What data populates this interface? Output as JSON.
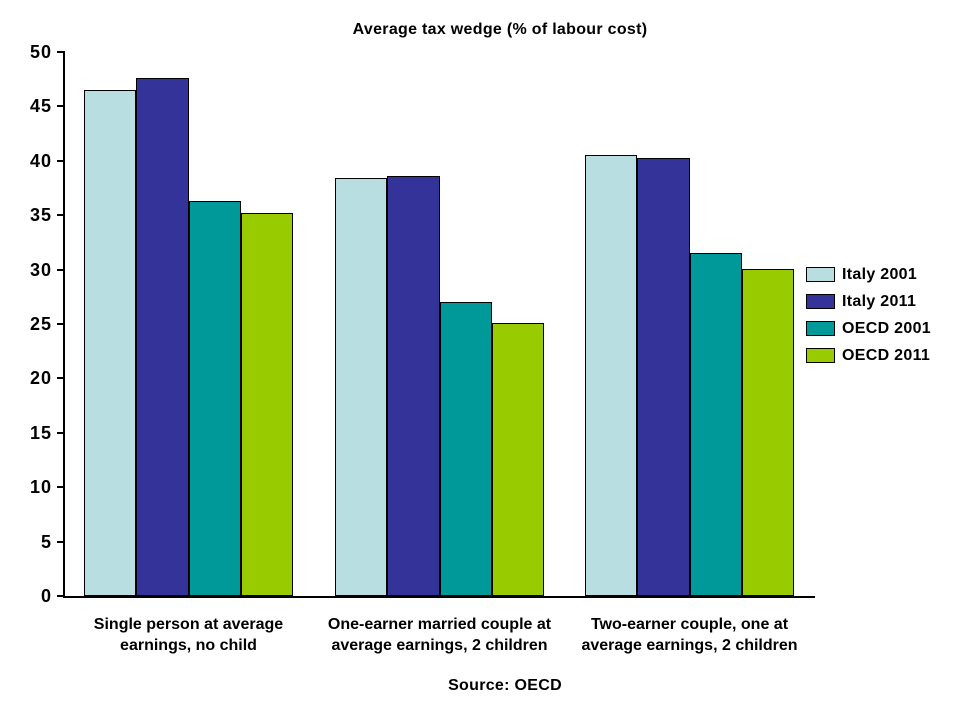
{
  "chart_data": {
    "type": "bar",
    "title": "Average tax wedge (% of labour cost)",
    "source": "Source: OECD",
    "categories": [
      "Single person at average\nearnings, no child",
      "One-earner married couple at\naverage earnings, 2 children",
      "Two-earner couple, one at\naverage earnings, 2 children"
    ],
    "series": [
      {
        "name": "Italy 2001",
        "color": "#B8DEE2",
        "values": [
          46.5,
          38.4,
          40.5
        ]
      },
      {
        "name": "Italy 2011",
        "color": "#333399",
        "values": [
          47.6,
          38.6,
          40.3
        ]
      },
      {
        "name": "OECD 2001",
        "color": "#009999",
        "values": [
          36.3,
          27.0,
          31.5
        ]
      },
      {
        "name": "OECD 2011",
        "color": "#99CC00",
        "values": [
          35.2,
          25.1,
          30.1
        ]
      }
    ],
    "ylim": [
      0,
      50
    ],
    "ytick_step": 5,
    "yticks": [
      0,
      5,
      10,
      15,
      20,
      25,
      30,
      35,
      40,
      45,
      50
    ],
    "grid": false,
    "legend_position": "right",
    "axis_color": "#000000",
    "background_color": "#ffffff"
  }
}
